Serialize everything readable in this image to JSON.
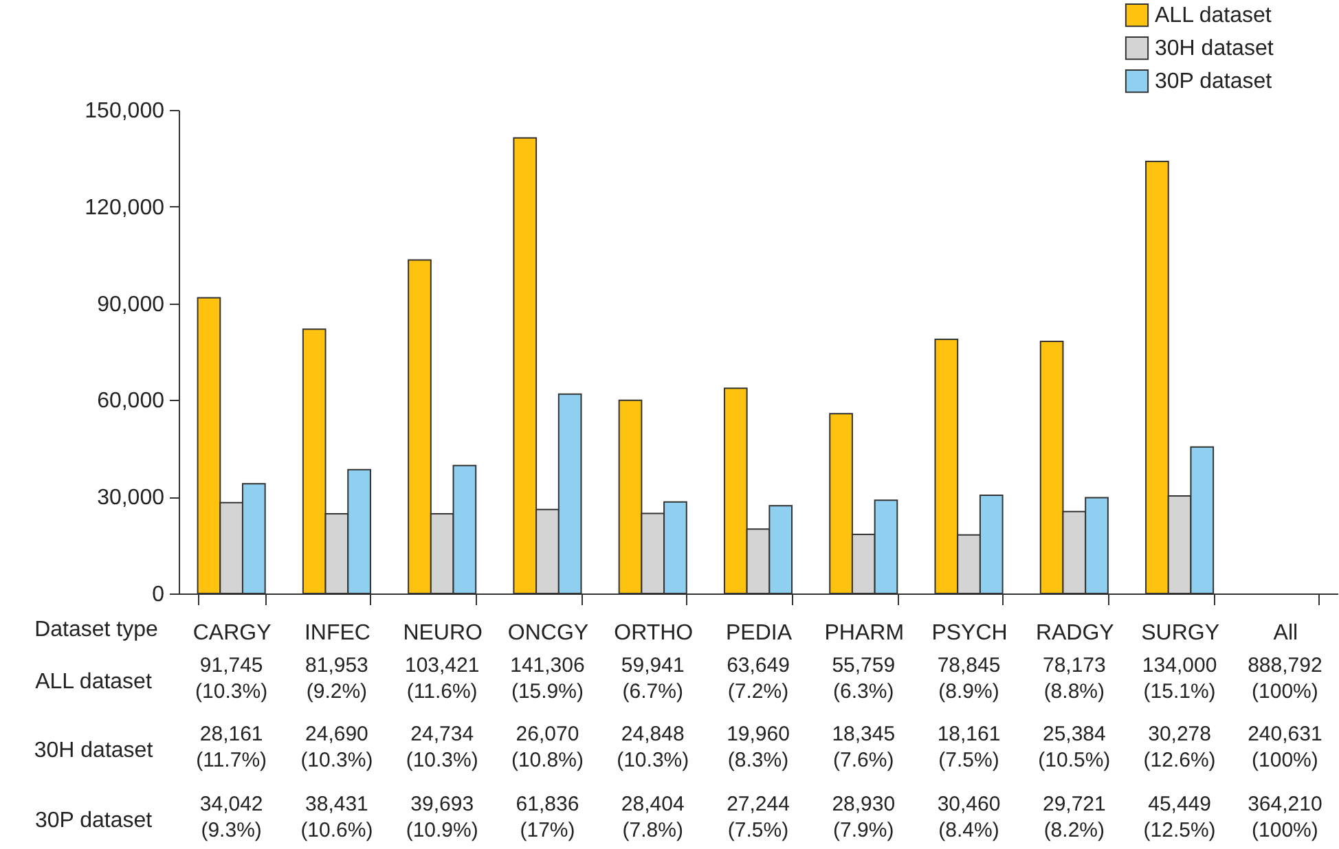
{
  "chart_data": {
    "type": "bar",
    "xlabel": "Dataset type",
    "categories": [
      "CARGY",
      "INFEC",
      "NEURO",
      "ONCGY",
      "ORTHO",
      "PEDIA",
      "PHARM",
      "PSYCH",
      "RADGY",
      "SURGY",
      "All"
    ],
    "series": [
      {
        "name": "ALL dataset",
        "color": "#ffc20e",
        "values": [
          91745,
          81953,
          103421,
          141306,
          59941,
          63649,
          55759,
          78845,
          78173,
          134000,
          null
        ],
        "value_labels": [
          "91,745\n(10.3%)",
          "81,953\n(9.2%)",
          "103,421\n(11.6%)",
          "141,306\n(15.9%)",
          "59,941\n(6.7%)",
          "63,649\n(7.2%)",
          "55,759\n(6.3%)",
          "78,845\n(8.9%)",
          "78,173\n(8.8%)",
          "134,000\n(15.1%)",
          "888,792\n(100%)"
        ]
      },
      {
        "name": "30H dataset",
        "color": "#d4d4d4",
        "values": [
          28161,
          24690,
          24734,
          26070,
          24848,
          19960,
          18345,
          18161,
          25384,
          30278,
          null
        ],
        "value_labels": [
          "28,161\n(11.7%)",
          "24,690\n(10.3%)",
          "24,734\n(10.3%)",
          "26,070\n(10.8%)",
          "24,848\n(10.3%)",
          "19,960\n(8.3%)",
          "18,345\n(7.6%)",
          "18,161\n(7.5%)",
          "25,384\n(10.5%)",
          "30,278\n(12.6%)",
          "240,631\n(100%)"
        ]
      },
      {
        "name": "30P dataset",
        "color": "#8fd0f0",
        "values": [
          34042,
          38431,
          39693,
          61836,
          28404,
          27244,
          28930,
          30460,
          29721,
          45449,
          null
        ],
        "value_labels": [
          "34,042\n(9.3%)",
          "38,431\n(10.6%)",
          "39,693\n(10.9%)",
          "61,836\n(17%)",
          "28,404\n(7.8%)",
          "27,244\n(7.5%)",
          "28,930\n(7.9%)",
          "30,460\n(8.4%)",
          "29,721\n(8.2%)",
          "45,449\n(12.5%)",
          "364,210\n(100%)"
        ]
      }
    ],
    "ylim": [
      0,
      150000
    ],
    "yticks": [
      0,
      {
        "value": 30000,
        "label": "30,000"
      },
      {
        "value": 60000,
        "label": "60,000"
      },
      {
        "value": 90000,
        "label": "90,000"
      },
      {
        "value": 120000,
        "label": "120,000"
      },
      {
        "value": 150000,
        "label": "150,000"
      }
    ],
    "grid": false,
    "legend": "top right"
  }
}
